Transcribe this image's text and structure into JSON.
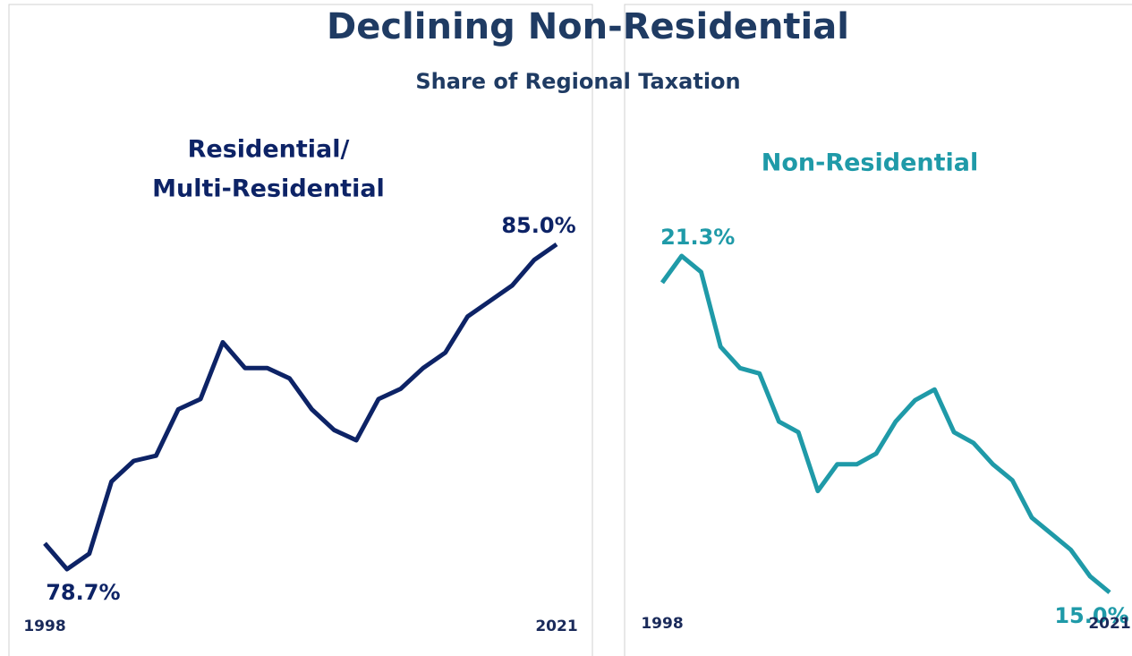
{
  "chart_data": [
    {
      "type": "line",
      "title": "Declining Non-Residential",
      "subtitle": "Share of Regional Taxation",
      "panel_title": [
        "Residential/",
        "Multi-Residential"
      ],
      "x": [
        1998,
        1999,
        2000,
        2001,
        2002,
        2003,
        2004,
        2005,
        2006,
        2007,
        2008,
        2009,
        2010,
        2011,
        2012,
        2013,
        2014,
        2015,
        2016,
        2017,
        2018,
        2019,
        2020,
        2021
      ],
      "xlim": [
        1998,
        2021
      ],
      "xticks": [
        1998,
        2021
      ],
      "series": [
        {
          "name": "Residential/Multi-Residential",
          "color": "#0d2366",
          "values": [
            79.2,
            78.7,
            79.0,
            80.4,
            80.8,
            80.9,
            81.8,
            82.0,
            83.1,
            82.6,
            82.6,
            82.4,
            81.8,
            81.4,
            81.2,
            82.0,
            82.2,
            82.6,
            82.9,
            83.6,
            83.9,
            84.2,
            84.7,
            85.0
          ],
          "value_labels": [
            null,
            "78.7%",
            null,
            null,
            null,
            null,
            null,
            null,
            null,
            null,
            null,
            null,
            null,
            null,
            null,
            null,
            null,
            null,
            null,
            null,
            null,
            null,
            null,
            "85.0%"
          ]
        }
      ]
    },
    {
      "type": "line",
      "panel_title": [
        "Non-Residential"
      ],
      "x": [
        1998,
        1999,
        2000,
        2001,
        2002,
        2003,
        2004,
        2005,
        2006,
        2007,
        2008,
        2009,
        2010,
        2011,
        2012,
        2013,
        2014,
        2015,
        2016,
        2017,
        2018,
        2019,
        2020,
        2021
      ],
      "xlim": [
        1998,
        2021
      ],
      "xticks": [
        1998,
        2021
      ],
      "series": [
        {
          "name": "Non-Residential",
          "color": "#1f9aa8",
          "values": [
            20.8,
            21.3,
            21.0,
            19.6,
            19.2,
            19.1,
            18.2,
            18.0,
            16.9,
            17.4,
            17.4,
            17.6,
            18.2,
            18.6,
            18.8,
            18.0,
            17.8,
            17.4,
            17.1,
            16.4,
            16.1,
            15.8,
            15.3,
            15.0
          ],
          "value_labels": [
            null,
            "21.3%",
            null,
            null,
            null,
            null,
            null,
            null,
            null,
            null,
            null,
            null,
            null,
            null,
            null,
            null,
            null,
            null,
            null,
            null,
            null,
            null,
            null,
            "15.0%"
          ]
        }
      ]
    }
  ]
}
